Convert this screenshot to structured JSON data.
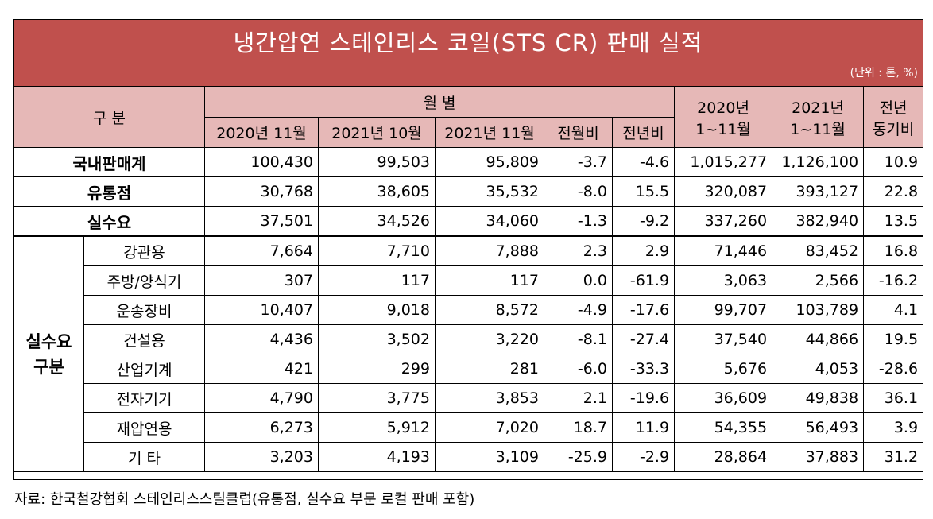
{
  "title": "냉간압연 스테인리스 코일(STS CR) 판매 실적",
  "unit": "(단위 : 톤, %)",
  "header": {
    "category": "구    분",
    "monthly": "월          별",
    "months": [
      "2020년 11월",
      "2021년 10월",
      "2021년 11월",
      "전월비",
      "전년비"
    ],
    "cum2020_line1": "2020년",
    "cum2020_line2": "1~11월",
    "cum2021_line1": "2021년",
    "cum2021_line2": "1~11월",
    "yoy_line1": "전년",
    "yoy_line2": "동기비"
  },
  "top_rows": [
    {
      "label": "국내판매계",
      "values": [
        "100,430",
        "99,503",
        "95,809",
        "-3.7",
        "-4.6",
        "1,015,277",
        "1,126,100",
        "10.9"
      ]
    },
    {
      "label": "유통점",
      "values": [
        "30,768",
        "38,605",
        "35,532",
        "-8.0",
        "15.5",
        "320,087",
        "393,127",
        "22.8"
      ]
    },
    {
      "label": "실수요",
      "values": [
        "37,501",
        "34,526",
        "34,060",
        "-1.3",
        "-9.2",
        "337,260",
        "382,940",
        "13.5"
      ]
    }
  ],
  "group_label_1": "실수요",
  "group_label_2": "구분",
  "sub_rows": [
    {
      "label": "강관용",
      "values": [
        "7,664",
        "7,710",
        "7,888",
        "2.3",
        "2.9",
        "71,446",
        "83,452",
        "16.8"
      ]
    },
    {
      "label": "주방/양식기",
      "values": [
        "307",
        "117",
        "117",
        "0.0",
        "-61.9",
        "3,063",
        "2,566",
        "-16.2"
      ]
    },
    {
      "label": "운송장비",
      "values": [
        "10,407",
        "9,018",
        "8,572",
        "-4.9",
        "-17.6",
        "99,707",
        "103,789",
        "4.1"
      ]
    },
    {
      "label": "건설용",
      "values": [
        "4,436",
        "3,502",
        "3,220",
        "-8.1",
        "-27.4",
        "37,540",
        "44,866",
        "19.5"
      ]
    },
    {
      "label": "산업기계",
      "values": [
        "421",
        "299",
        "281",
        "-6.0",
        "-33.3",
        "5,676",
        "4,053",
        "-28.6"
      ]
    },
    {
      "label": "전자기기",
      "values": [
        "4,790",
        "3,775",
        "3,853",
        "2.1",
        "-19.6",
        "36,609",
        "49,838",
        "36.1"
      ]
    },
    {
      "label": "재압연용",
      "values": [
        "6,273",
        "5,912",
        "7,020",
        "18.7",
        "11.9",
        "54,355",
        "56,493",
        "3.9"
      ]
    },
    {
      "label": "기    타",
      "values": [
        "3,203",
        "4,193",
        "3,109",
        "-25.9",
        "-2.9",
        "28,864",
        "37,883",
        "31.2"
      ]
    }
  ],
  "source": "자료: 한국철강협회 스테인리스스틸클럽(유통점, 실수요 부문 로컬 판매 포함)",
  "colors": {
    "title_bg": "#c0504d",
    "header_bg": "#e6b8b7"
  }
}
